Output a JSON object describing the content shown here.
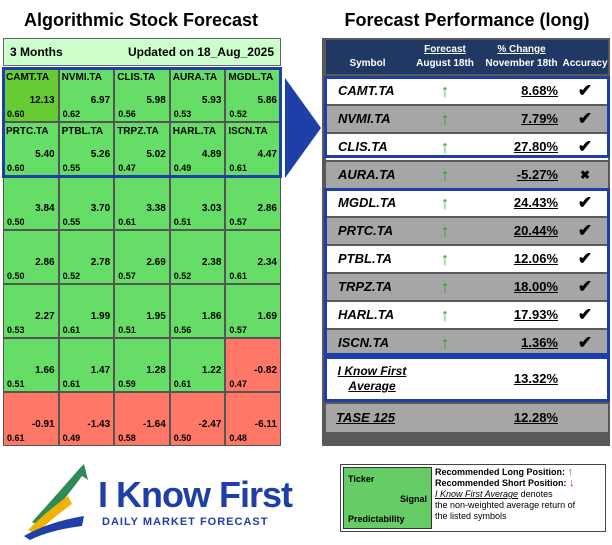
{
  "left": {
    "title": "Algorithmic Stock Forecast",
    "period": "3 Months",
    "updated": "Updated on 18_Aug_2025",
    "cells": [
      {
        "sym": "CAMT.TA",
        "val": "12.13",
        "pred": "0.60",
        "color": "#66cc33"
      },
      {
        "sym": "NVMI.TA",
        "val": "6.97",
        "pred": "0.62",
        "color": "#66dd66"
      },
      {
        "sym": "CLIS.TA",
        "val": "5.98",
        "pred": "0.56",
        "color": "#66dd66"
      },
      {
        "sym": "AURA.TA",
        "val": "5.93",
        "pred": "0.53",
        "color": "#66dd66"
      },
      {
        "sym": "MGDL.TA",
        "val": "5.86",
        "pred": "0.52",
        "color": "#66dd66"
      },
      {
        "sym": "PRTC.TA",
        "val": "5.40",
        "pred": "0.60",
        "color": "#66dd66"
      },
      {
        "sym": "PTBL.TA",
        "val": "5.26",
        "pred": "0.55",
        "color": "#66dd66"
      },
      {
        "sym": "TRPZ.TA",
        "val": "5.02",
        "pred": "0.47",
        "color": "#66dd66"
      },
      {
        "sym": "HARL.TA",
        "val": "4.89",
        "pred": "0.49",
        "color": "#66dd66"
      },
      {
        "sym": "ISCN.TA",
        "val": "4.47",
        "pred": "0.61",
        "color": "#66dd66"
      },
      {
        "sym": "",
        "val": "3.84",
        "pred": "0.50",
        "color": "#66dd66"
      },
      {
        "sym": "",
        "val": "3.70",
        "pred": "0.55",
        "color": "#66dd66"
      },
      {
        "sym": "",
        "val": "3.38",
        "pred": "0.61",
        "color": "#66dd66"
      },
      {
        "sym": "",
        "val": "3.03",
        "pred": "0.51",
        "color": "#66dd66"
      },
      {
        "sym": "",
        "val": "2.86",
        "pred": "0.57",
        "color": "#66dd66"
      },
      {
        "sym": "",
        "val": "2.86",
        "pred": "0.50",
        "color": "#66dd66"
      },
      {
        "sym": "",
        "val": "2.78",
        "pred": "0.52",
        "color": "#66dd66"
      },
      {
        "sym": "",
        "val": "2.69",
        "pred": "0.57",
        "color": "#66dd66"
      },
      {
        "sym": "",
        "val": "2.38",
        "pred": "0.52",
        "color": "#66dd66"
      },
      {
        "sym": "",
        "val": "2.34",
        "pred": "0.61",
        "color": "#66dd66"
      },
      {
        "sym": "",
        "val": "2.27",
        "pred": "0.53",
        "color": "#66dd66"
      },
      {
        "sym": "",
        "val": "1.99",
        "pred": "0.61",
        "color": "#66dd66"
      },
      {
        "sym": "",
        "val": "1.95",
        "pred": "0.51",
        "color": "#66dd66"
      },
      {
        "sym": "",
        "val": "1.86",
        "pred": "0.56",
        "color": "#66dd66"
      },
      {
        "sym": "",
        "val": "1.69",
        "pred": "0.57",
        "color": "#66dd66"
      },
      {
        "sym": "",
        "val": "1.66",
        "pred": "0.51",
        "color": "#66dd66"
      },
      {
        "sym": "",
        "val": "1.47",
        "pred": "0.61",
        "color": "#66dd66"
      },
      {
        "sym": "",
        "val": "1.28",
        "pred": "0.59",
        "color": "#66dd66"
      },
      {
        "sym": "",
        "val": "1.22",
        "pred": "0.61",
        "color": "#66dd66"
      },
      {
        "sym": "",
        "val": "-0.82",
        "pred": "0.47",
        "color": "#ff7766"
      },
      {
        "sym": "",
        "val": "-0.91",
        "pred": "0.61",
        "color": "#ff7766"
      },
      {
        "sym": "",
        "val": "-1.43",
        "pred": "0.49",
        "color": "#ff7766"
      },
      {
        "sym": "",
        "val": "-1.64",
        "pred": "0.58",
        "color": "#ff7766"
      },
      {
        "sym": "",
        "val": "-2.47",
        "pred": "0.50",
        "color": "#ff7766"
      },
      {
        "sym": "",
        "val": "-6.11",
        "pred": "0.48",
        "color": "#ff7766"
      }
    ]
  },
  "right": {
    "title": "Forecast Performance (long)",
    "headers": {
      "symbol": "Symbol",
      "forecast": "Forecast",
      "forecast_date": "August 18th",
      "change": "% Change",
      "change_date": "November 18th",
      "accuracy": "Accuracy"
    },
    "rows": [
      {
        "sym": "CAMT.TA",
        "arrow": "↑",
        "pct": "8.68%",
        "acc": "✔",
        "pct_color": "#000"
      },
      {
        "sym": "NVMI.TA",
        "arrow": "↑",
        "pct": "7.79%",
        "acc": "✔",
        "pct_color": "#000"
      },
      {
        "sym": "CLIS.TA",
        "arrow": "↑",
        "pct": "27.80%",
        "acc": "✔",
        "pct_color": "#000"
      },
      {
        "sym": "AURA.TA",
        "arrow": "↑",
        "pct": "-5.27%",
        "acc": "✖",
        "pct_color": "#000"
      },
      {
        "sym": "MGDL.TA",
        "arrow": "↑",
        "pct": "24.43%",
        "acc": "✔",
        "pct_color": "#000"
      },
      {
        "sym": "PRTC.TA",
        "arrow": "↑",
        "pct": "20.44%",
        "acc": "✔",
        "pct_color": "#000"
      },
      {
        "sym": "PTBL.TA",
        "arrow": "↑",
        "pct": "12.06%",
        "acc": "✔",
        "pct_color": "#000"
      },
      {
        "sym": "TRPZ.TA",
        "arrow": "↑",
        "pct": "18.00%",
        "acc": "✔",
        "pct_color": "#000"
      },
      {
        "sym": "HARL.TA",
        "arrow": "↑",
        "pct": "17.93%",
        "acc": "✔",
        "pct_color": "#000"
      },
      {
        "sym": "ISCN.TA",
        "arrow": "↑",
        "pct": "1.36%",
        "acc": "✔",
        "pct_color": "#000"
      }
    ],
    "average_label_1": "I Know First",
    "average_label_2": "Average",
    "average_value": "13.32%",
    "benchmark_label": "TASE 125",
    "benchmark_value": "12.28%"
  },
  "legend": {
    "ticker": "Ticker",
    "signal": "Signal",
    "predictability": "Predictability",
    "long": "Recommended Long Position:",
    "long_arrow": "↑",
    "short": "Recommended Short Position:",
    "short_arrow": "↓",
    "avg_link": "I Know First Average",
    "avg_text": "denotes",
    "avg_text2": "the non-weighted average return of",
    "avg_text3": "the listed symbols"
  },
  "logo": {
    "name": "I Know First",
    "tagline": "DAILY MARKET FORECAST"
  },
  "colors": {
    "green_arrow": "#22aa33",
    "blue_box": "#1f3fa8",
    "header_navy": "#1f3864"
  }
}
